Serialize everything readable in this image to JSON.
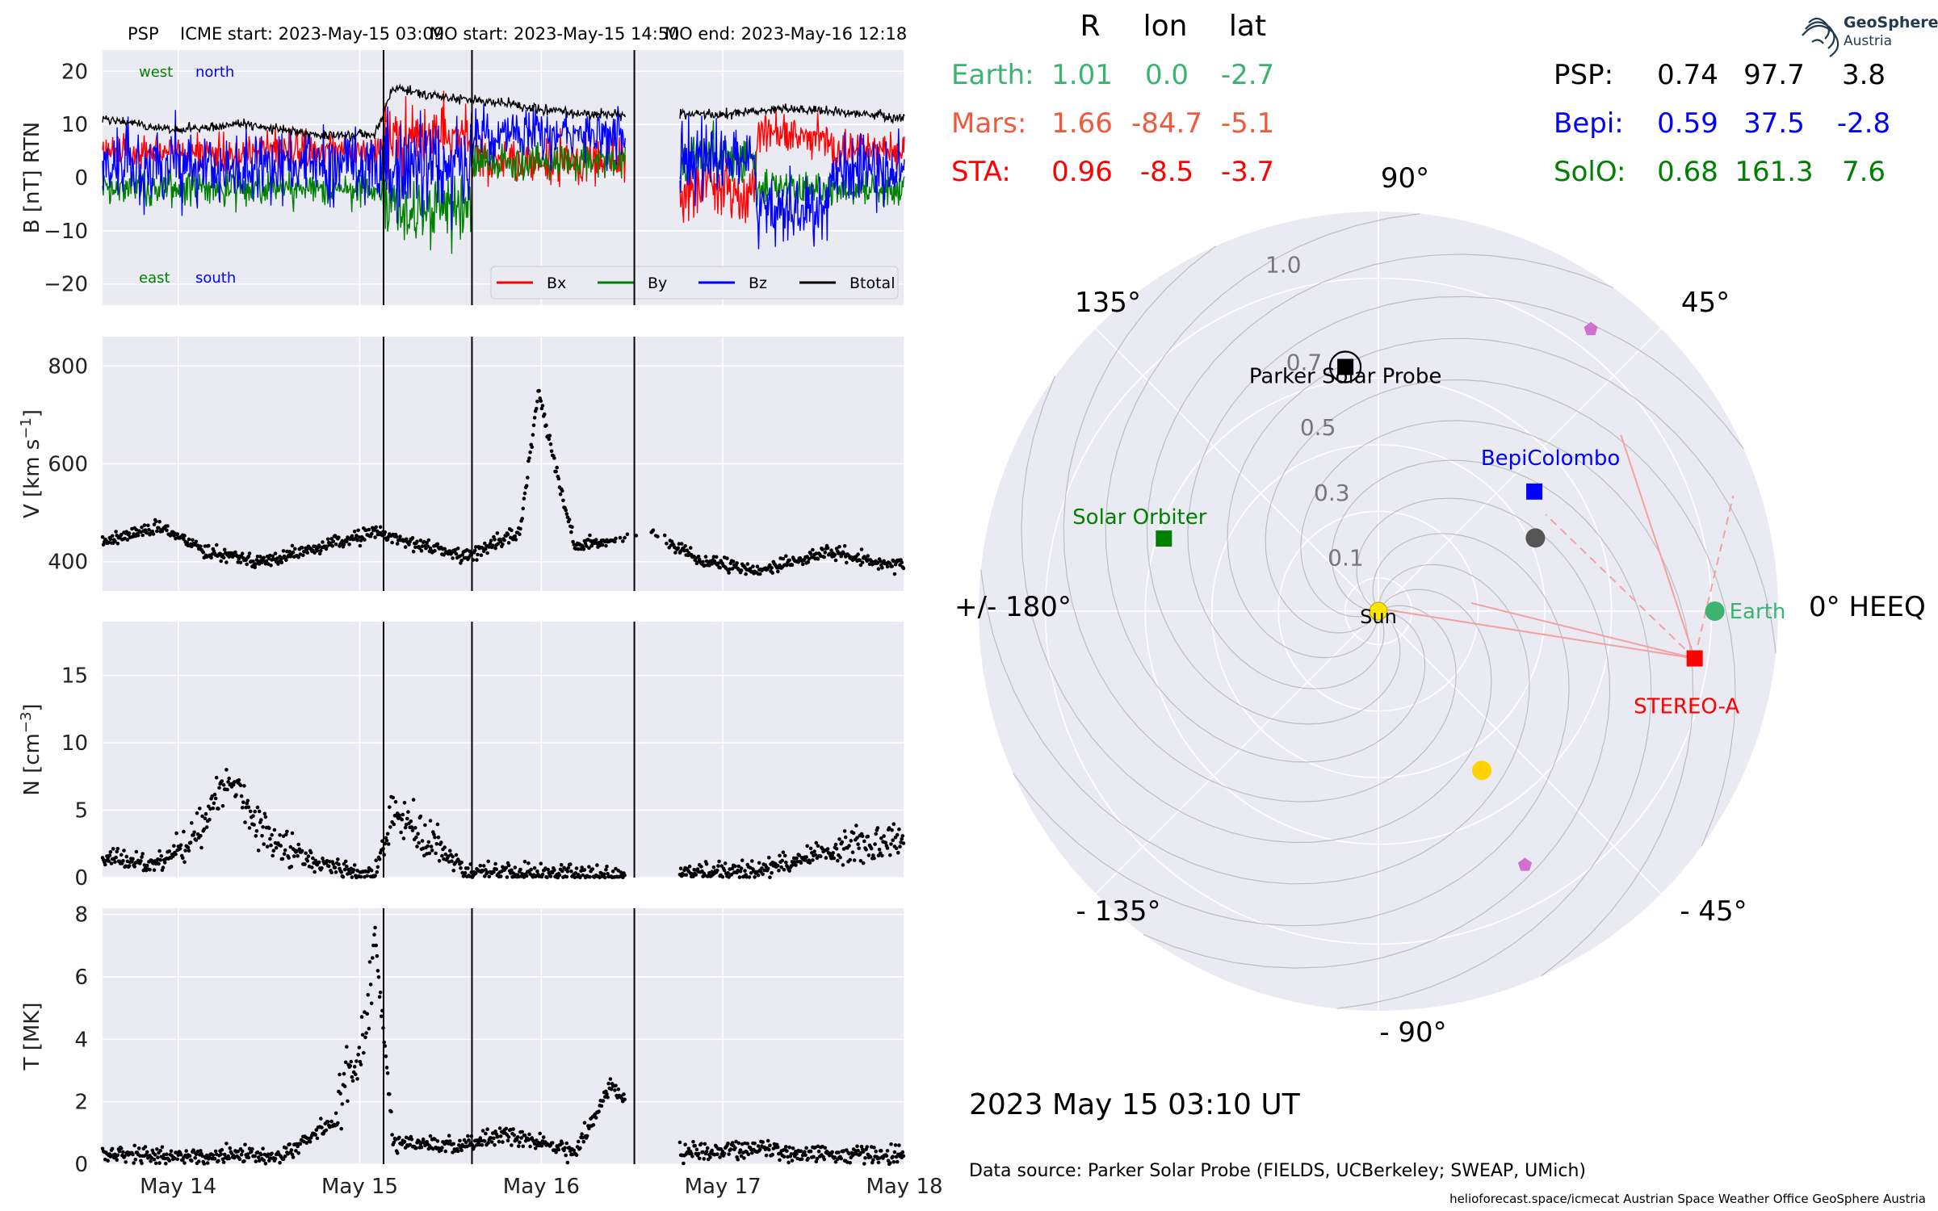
{
  "header": {
    "spacecraft": "PSP",
    "icme_start": "ICME start: 2023-May-15 03:09",
    "mo_start": "MO start: 2023-May-15 14:50",
    "mo_end": "MO end: 2023-May-16 12:18"
  },
  "chart_data": [
    {
      "type": "line",
      "panel": "magnetic-field",
      "ylabel": "B [nT] RTN",
      "ylim": [
        -24,
        24
      ],
      "yticks": [
        20,
        10,
        0,
        -10,
        -20
      ],
      "xlim": [
        "2023-05-13T14:00",
        "2023-05-18T00:00"
      ],
      "xtick_labels": [
        "May 14",
        "May 15",
        "May 16",
        "May 17",
        "May 18"
      ],
      "xtick_dates": [
        "2023-05-14",
        "2023-05-15",
        "2023-05-16",
        "2023-05-17",
        "2023-05-18"
      ],
      "annotations": {
        "west": "west",
        "north": "north",
        "east": "east",
        "south": "south"
      },
      "legend_position": "lower-right",
      "series": [
        {
          "name": "Bx",
          "color": "#ff0000"
        },
        {
          "name": "By",
          "color": "#008000"
        },
        {
          "name": "Bz",
          "color": "#0000ff"
        },
        {
          "name": "Btotal",
          "color": "#000000"
        }
      ],
      "sample_time_days": [
        0.0,
        0.4,
        0.8,
        1.2,
        1.5,
        1.6,
        1.9,
        2.2,
        2.6,
        3.0,
        3.4,
        3.8,
        4.2,
        4.4
      ],
      "btotal_approx": [
        11,
        9,
        10,
        8,
        8,
        17,
        15,
        14,
        12,
        12,
        12,
        13,
        12,
        11
      ],
      "gap_days": [
        2.88,
        3.18
      ]
    },
    {
      "type": "scatter",
      "panel": "speed",
      "ylabel": "V [km s",
      "ylabel_sup": "−1",
      "ylabel_end": "]",
      "ylim": [
        340,
        860
      ],
      "yticks": [
        800,
        600,
        400
      ],
      "x_days": [
        0.0,
        0.3,
        0.6,
        0.9,
        1.2,
        1.5,
        1.6,
        2.0,
        2.3,
        2.4,
        2.6,
        3.0,
        3.3,
        3.6,
        4.0,
        4.4
      ],
      "y_values": [
        440,
        470,
        420,
        400,
        430,
        460,
        450,
        410,
        460,
        750,
        430,
        460,
        400,
        380,
        420,
        390
      ]
    },
    {
      "type": "scatter",
      "panel": "density",
      "ylabel": "N [cm",
      "ylabel_sup": "−3",
      "ylabel_end": "]",
      "ylim": [
        0,
        19
      ],
      "yticks": [
        15,
        10,
        5,
        0
      ],
      "x_days": [
        0.0,
        0.3,
        0.5,
        0.7,
        0.9,
        1.2,
        1.5,
        1.6,
        2.0,
        2.4,
        2.8,
        3.2,
        3.6,
        4.0,
        4.4
      ],
      "y_values": [
        1.5,
        1.0,
        3.0,
        7.5,
        3.0,
        1.0,
        0.1,
        5.0,
        0.5,
        0.3,
        0.2,
        0.3,
        0.5,
        2.0,
        3.0
      ]
    },
    {
      "type": "scatter",
      "panel": "temperature",
      "ylabel": "T [MK]",
      "ylim": [
        0,
        8.2
      ],
      "yticks": [
        8,
        6,
        4,
        2,
        0
      ],
      "x_days": [
        0.0,
        0.5,
        1.0,
        1.3,
        1.45,
        1.5,
        1.6,
        2.0,
        2.2,
        2.6,
        2.8,
        3.2,
        3.6,
        4.0,
        4.4
      ],
      "y_values": [
        0.3,
        0.25,
        0.3,
        1.5,
        4.5,
        7.5,
        0.7,
        0.6,
        1.0,
        0.4,
        2.5,
        0.4,
        0.5,
        0.3,
        0.3
      ]
    },
    {
      "type": "scatter",
      "panel": "polar-orbit-plot",
      "angular_ticks": [
        "90°",
        "45°",
        "0° HEEQ",
        "- 45°",
        "- 90°",
        "- 135°",
        "+/- 180°",
        "135°"
      ],
      "radial_ticks": [
        "0.1",
        "0.3",
        "0.5",
        "0.7",
        "1.0"
      ],
      "sun_label": "Sun",
      "bodies": [
        {
          "label": "Parker Solar Probe",
          "r": 0.74,
          "lon": 97.7,
          "color": "#000000"
        },
        {
          "label": "BepiColombo",
          "r": 0.59,
          "lon": 37.5,
          "color": "#0000ff"
        },
        {
          "label": "Solar Orbiter",
          "r": 0.68,
          "lon": 161.3,
          "color": "#008000"
        },
        {
          "label": "Earth",
          "r": 1.01,
          "lon": 0.0,
          "color": "#3cb371"
        },
        {
          "label": "STEREO-A",
          "r": 0.96,
          "lon": -8.5,
          "color": "#ff0000"
        }
      ]
    }
  ],
  "positions_table": {
    "headers": [
      "R",
      "lon",
      "lat"
    ],
    "left": [
      {
        "name": "Earth:",
        "r": "1.01",
        "lon": "0.0",
        "lat": "-2.7",
        "color": "#3cb371"
      },
      {
        "name": "Mars:",
        "r": "1.66",
        "lon": "-84.7",
        "lat": "-5.1",
        "color": "#f05a3c"
      },
      {
        "name": "STA:",
        "r": "0.96",
        "lon": "-8.5",
        "lat": "-3.7",
        "color": "#ff0000"
      }
    ],
    "right": [
      {
        "name": "PSP:",
        "r": "0.74",
        "lon": "97.7",
        "lat": "3.8",
        "color": "#000000"
      },
      {
        "name": "Bepi:",
        "r": "0.59",
        "lon": "37.5",
        "lat": "-2.8",
        "color": "#0000ff"
      },
      {
        "name": "SolO:",
        "r": "0.68",
        "lon": "161.3",
        "lat": "7.6",
        "color": "#008000"
      }
    ]
  },
  "timestamp": "2023 May 15  03:10 UT",
  "data_source": "Data source: Parker Solar Probe (FIELDS, UCBerkeley; SWEAP, UMich)",
  "footer": "helioforecast.space/icmecat   Austrian Space Weather Office   GeoSphere Austria",
  "logo": {
    "line1": "GeoSphere",
    "line2": "Austria"
  }
}
